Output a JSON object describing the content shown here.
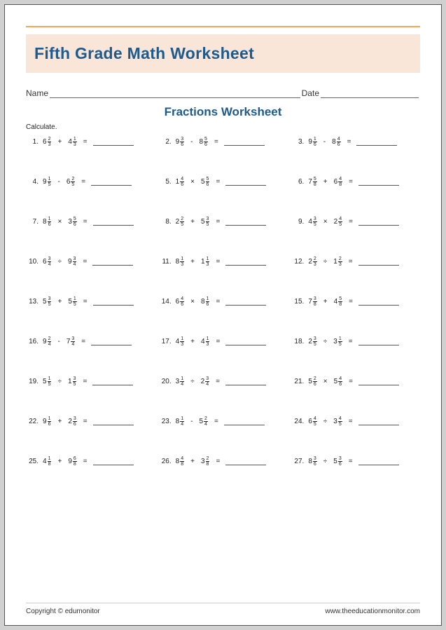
{
  "header": {
    "title": "Fifth Grade Math Worksheet",
    "name_label": "Name",
    "date_label": "Date",
    "subtitle": "Fractions Worksheet",
    "instruction": "Calculate."
  },
  "colors": {
    "accent_rule": "#f5a45a",
    "title_band_bg": "#f9e6d8",
    "heading_text": "#1f5a8c",
    "page_bg": "#ffffff",
    "body_text": "#222222"
  },
  "problems": [
    {
      "n": "1.",
      "a": {
        "w": "6",
        "num": "2",
        "den": "3"
      },
      "op": "+",
      "b": {
        "w": "4",
        "num": "1",
        "den": "3"
      }
    },
    {
      "n": "2.",
      "a": {
        "w": "9",
        "num": "3",
        "den": "6"
      },
      "op": "-",
      "b": {
        "w": "8",
        "num": "5",
        "den": "6"
      }
    },
    {
      "n": "3.",
      "a": {
        "w": "9",
        "num": "1",
        "den": "6"
      },
      "op": "-",
      "b": {
        "w": "8",
        "num": "4",
        "den": "6"
      }
    },
    {
      "n": "4.",
      "a": {
        "w": "9",
        "num": "1",
        "den": "5"
      },
      "op": "-",
      "b": {
        "w": "6",
        "num": "2",
        "den": "5"
      }
    },
    {
      "n": "5.",
      "a": {
        "w": "1",
        "num": "4",
        "den": "6"
      },
      "op": "×",
      "b": {
        "w": "5",
        "num": "5",
        "den": "6"
      }
    },
    {
      "n": "6.",
      "a": {
        "w": "7",
        "num": "5",
        "den": "8"
      },
      "op": "+",
      "b": {
        "w": "6",
        "num": "4",
        "den": "8"
      }
    },
    {
      "n": "7.",
      "a": {
        "w": "8",
        "num": "1",
        "den": "6"
      },
      "op": "×",
      "b": {
        "w": "3",
        "num": "5",
        "den": "6"
      }
    },
    {
      "n": "8.",
      "a": {
        "w": "2",
        "num": "2",
        "den": "5"
      },
      "op": "+",
      "b": {
        "w": "5",
        "num": "3",
        "den": "5"
      }
    },
    {
      "n": "9.",
      "a": {
        "w": "4",
        "num": "3",
        "den": "5"
      },
      "op": "×",
      "b": {
        "w": "2",
        "num": "4",
        "den": "5"
      }
    },
    {
      "n": "10.",
      "a": {
        "w": "6",
        "num": "3",
        "den": "4"
      },
      "op": "÷",
      "b": {
        "w": "9",
        "num": "3",
        "den": "4"
      }
    },
    {
      "n": "11.",
      "a": {
        "w": "8",
        "num": "1",
        "den": "3"
      },
      "op": "+",
      "b": {
        "w": "1",
        "num": "1",
        "den": "3"
      }
    },
    {
      "n": "12.",
      "a": {
        "w": "2",
        "num": "2",
        "den": "3"
      },
      "op": "÷",
      "b": {
        "w": "1",
        "num": "2",
        "den": "3"
      }
    },
    {
      "n": "13.",
      "a": {
        "w": "5",
        "num": "3",
        "den": "5"
      },
      "op": "+",
      "b": {
        "w": "5",
        "num": "1",
        "den": "5"
      }
    },
    {
      "n": "14.",
      "a": {
        "w": "6",
        "num": "4",
        "den": "6"
      },
      "op": "×",
      "b": {
        "w": "8",
        "num": "1",
        "den": "6"
      }
    },
    {
      "n": "15.",
      "a": {
        "w": "7",
        "num": "3",
        "den": "8"
      },
      "op": "+",
      "b": {
        "w": "4",
        "num": "5",
        "den": "8"
      }
    },
    {
      "n": "16.",
      "a": {
        "w": "9",
        "num": "2",
        "den": "4"
      },
      "op": "-",
      "b": {
        "w": "7",
        "num": "3",
        "den": "4"
      }
    },
    {
      "n": "17.",
      "a": {
        "w": "4",
        "num": "1",
        "den": "3"
      },
      "op": "+",
      "b": {
        "w": "4",
        "num": "1",
        "den": "3"
      }
    },
    {
      "n": "18.",
      "a": {
        "w": "2",
        "num": "3",
        "den": "5"
      },
      "op": "÷",
      "b": {
        "w": "3",
        "num": "1",
        "den": "5"
      }
    },
    {
      "n": "19.",
      "a": {
        "w": "5",
        "num": "1",
        "den": "5"
      },
      "op": "÷",
      "b": {
        "w": "1",
        "num": "3",
        "den": "5"
      }
    },
    {
      "n": "20.",
      "a": {
        "w": "3",
        "num": "1",
        "den": "4"
      },
      "op": "÷",
      "b": {
        "w": "2",
        "num": "3",
        "den": "4"
      }
    },
    {
      "n": "21.",
      "a": {
        "w": "5",
        "num": "2",
        "den": "6"
      },
      "op": "×",
      "b": {
        "w": "5",
        "num": "4",
        "den": "6"
      }
    },
    {
      "n": "22.",
      "a": {
        "w": "9",
        "num": "1",
        "den": "6"
      },
      "op": "+",
      "b": {
        "w": "2",
        "num": "3",
        "den": "6"
      }
    },
    {
      "n": "23.",
      "a": {
        "w": "8",
        "num": "1",
        "den": "4"
      },
      "op": "-",
      "b": {
        "w": "5",
        "num": "2",
        "den": "4"
      }
    },
    {
      "n": "24.",
      "a": {
        "w": "6",
        "num": "4",
        "den": "5"
      },
      "op": "÷",
      "b": {
        "w": "3",
        "num": "4",
        "den": "5"
      }
    },
    {
      "n": "25.",
      "a": {
        "w": "4",
        "num": "1",
        "den": "8"
      },
      "op": "+",
      "b": {
        "w": "9",
        "num": "6",
        "den": "8"
      }
    },
    {
      "n": "26.",
      "a": {
        "w": "8",
        "num": "4",
        "den": "8"
      },
      "op": "+",
      "b": {
        "w": "3",
        "num": "2",
        "den": "8"
      }
    },
    {
      "n": "27.",
      "a": {
        "w": "8",
        "num": "3",
        "den": "6"
      },
      "op": "÷",
      "b": {
        "w": "5",
        "num": "3",
        "den": "6"
      }
    }
  ],
  "footer": {
    "copyright": "Copyright © edumonitor",
    "url": "www.theeducationmonitor.com"
  }
}
